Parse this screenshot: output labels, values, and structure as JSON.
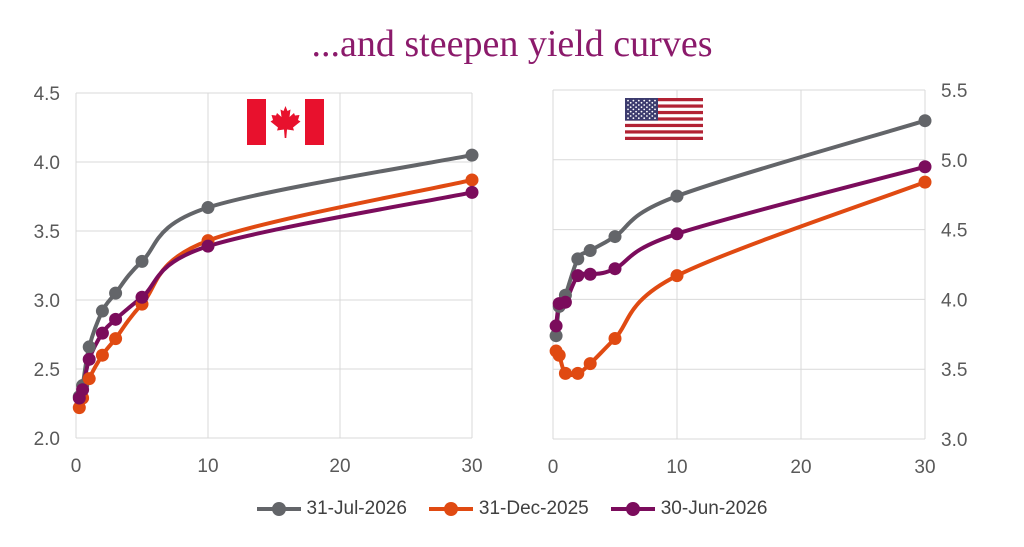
{
  "title": "...and steepen yield curves",
  "colors": {
    "title": "#8b1a6b",
    "grid": "#d9d9d9",
    "tick_text": "#595959"
  },
  "chart_data": [
    {
      "type": "line",
      "flag": "canada-flag-icon",
      "y_axis_side": "left",
      "xlim": [
        0,
        30
      ],
      "x_ticks": [
        0,
        10,
        20,
        30
      ],
      "ylim": [
        2.0,
        4.5
      ],
      "y_ticks": [
        "2.0",
        "2.5",
        "3.0",
        "3.5",
        "4.0",
        "4.5"
      ],
      "series": [
        {
          "name": "31-Jul-2026",
          "color": "#636569",
          "x": [
            0.25,
            0.5,
            1,
            2,
            3,
            5,
            10,
            30
          ],
          "y": [
            2.3,
            2.38,
            2.66,
            2.92,
            3.05,
            3.28,
            3.67,
            4.05
          ]
        },
        {
          "name": "31-Dec-2025",
          "color": "#e04a12",
          "x": [
            0.25,
            0.5,
            1,
            2,
            3,
            5,
            10,
            30
          ],
          "y": [
            2.22,
            2.29,
            2.43,
            2.6,
            2.72,
            2.97,
            3.43,
            3.87
          ]
        },
        {
          "name": "30-Jun-2026",
          "color": "#7b0c5c",
          "x": [
            0.25,
            0.5,
            1,
            2,
            3,
            5,
            10,
            30
          ],
          "y": [
            2.29,
            2.35,
            2.57,
            2.76,
            2.86,
            3.02,
            3.39,
            3.78
          ]
        }
      ]
    },
    {
      "type": "line",
      "flag": "us-flag-icon",
      "y_axis_side": "right",
      "xlim": [
        0,
        30
      ],
      "x_ticks": [
        0,
        10,
        20,
        30
      ],
      "ylim": [
        3.0,
        5.5
      ],
      "y_ticks": [
        "3.0",
        "3.5",
        "4.0",
        "4.5",
        "5.0",
        "5.5"
      ],
      "series": [
        {
          "name": "31-Jul-2026",
          "color": "#636569",
          "x": [
            0.25,
            0.5,
            1,
            2,
            3,
            5,
            10,
            30
          ],
          "y": [
            3.74,
            3.95,
            4.03,
            4.29,
            4.35,
            4.45,
            4.74,
            5.28
          ]
        },
        {
          "name": "31-Dec-2025",
          "color": "#e04a12",
          "x": [
            0.25,
            0.5,
            1,
            2,
            3,
            5,
            10,
            30
          ],
          "y": [
            3.63,
            3.6,
            3.47,
            3.47,
            3.54,
            3.72,
            4.17,
            4.84
          ]
        },
        {
          "name": "30-Jun-2026",
          "color": "#7b0c5c",
          "x": [
            0.25,
            0.5,
            1,
            2,
            3,
            5,
            10,
            30
          ],
          "y": [
            3.81,
            3.97,
            3.98,
            4.17,
            4.18,
            4.22,
            4.47,
            4.95
          ]
        }
      ]
    }
  ],
  "legend": [
    {
      "label": "31-Jul-2026",
      "color": "#636569"
    },
    {
      "label": "31-Dec-2025",
      "color": "#e04a12"
    },
    {
      "label": "30-Jun-2026",
      "color": "#7b0c5c"
    }
  ]
}
